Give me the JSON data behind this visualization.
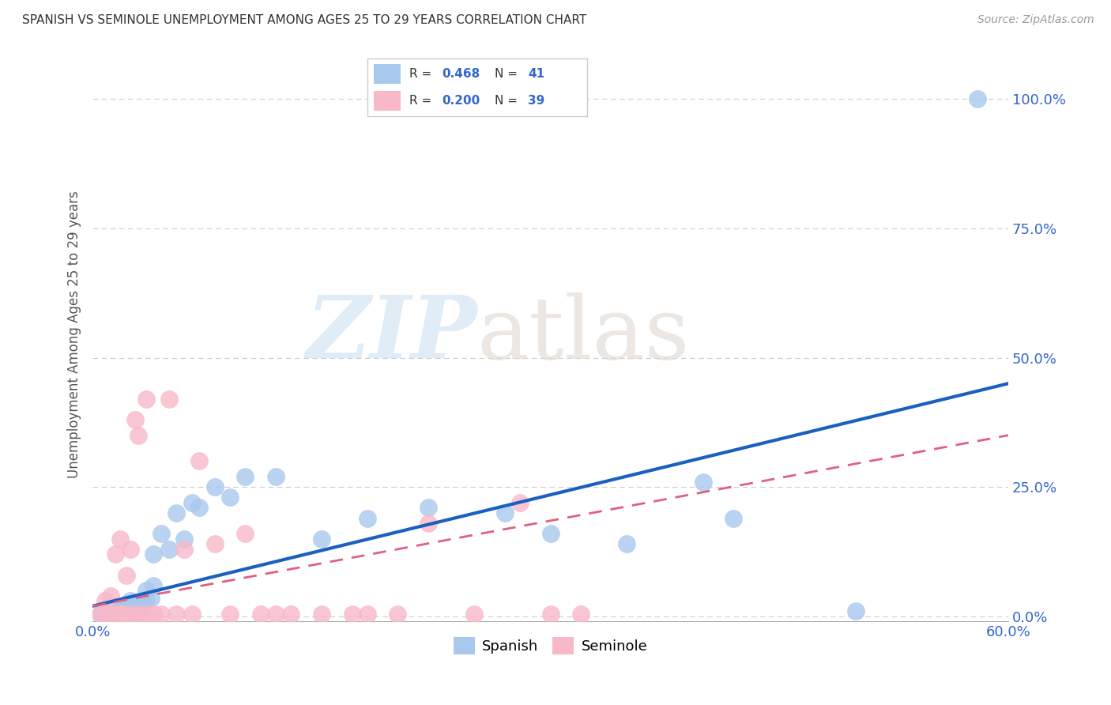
{
  "title": "SPANISH VS SEMINOLE UNEMPLOYMENT AMONG AGES 25 TO 29 YEARS CORRELATION CHART",
  "source": "Source: ZipAtlas.com",
  "ylabel": "Unemployment Among Ages 25 to 29 years",
  "xlim": [
    0.0,
    0.6
  ],
  "ylim": [
    -0.01,
    1.1
  ],
  "xticks": [
    0.0,
    0.15,
    0.3,
    0.45,
    0.6
  ],
  "yticks": [
    0.0,
    0.25,
    0.5,
    0.75,
    1.0
  ],
  "spanish_R": 0.468,
  "spanish_N": 41,
  "seminole_R": 0.2,
  "seminole_N": 39,
  "spanish_color": "#A8C8EE",
  "seminole_color": "#F8B8C8",
  "spanish_line_color": "#1A60C0",
  "seminole_line_color": "#E06080",
  "background_color": "#ffffff",
  "grid_color": "#cccccc",
  "title_color": "#333333",
  "axis_label_color": "#555555",
  "legend_R_N_color": "#3366CC",
  "spanish_x": [
    0.005,
    0.008,
    0.01,
    0.012,
    0.015,
    0.015,
    0.018,
    0.02,
    0.02,
    0.022,
    0.025,
    0.025,
    0.028,
    0.03,
    0.03,
    0.032,
    0.035,
    0.035,
    0.038,
    0.04,
    0.04,
    0.045,
    0.05,
    0.055,
    0.06,
    0.065,
    0.07,
    0.08,
    0.09,
    0.1,
    0.12,
    0.15,
    0.18,
    0.22,
    0.27,
    0.3,
    0.35,
    0.4,
    0.42,
    0.5,
    0.58
  ],
  "spanish_y": [
    0.005,
    0.01,
    0.008,
    0.015,
    0.005,
    0.02,
    0.01,
    0.005,
    0.018,
    0.025,
    0.005,
    0.03,
    0.02,
    0.005,
    0.015,
    0.025,
    0.03,
    0.05,
    0.035,
    0.12,
    0.06,
    0.16,
    0.13,
    0.2,
    0.15,
    0.22,
    0.21,
    0.25,
    0.23,
    0.27,
    0.27,
    0.15,
    0.19,
    0.21,
    0.2,
    0.16,
    0.14,
    0.26,
    0.19,
    0.01,
    1.0
  ],
  "seminole_x": [
    0.005,
    0.008,
    0.01,
    0.012,
    0.015,
    0.015,
    0.018,
    0.018,
    0.02,
    0.022,
    0.025,
    0.025,
    0.028,
    0.03,
    0.03,
    0.035,
    0.035,
    0.04,
    0.045,
    0.05,
    0.055,
    0.06,
    0.065,
    0.07,
    0.08,
    0.09,
    0.1,
    0.11,
    0.12,
    0.13,
    0.15,
    0.17,
    0.18,
    0.2,
    0.22,
    0.25,
    0.28,
    0.3,
    0.32
  ],
  "seminole_y": [
    0.005,
    0.03,
    0.005,
    0.04,
    0.005,
    0.12,
    0.005,
    0.15,
    0.005,
    0.08,
    0.005,
    0.13,
    0.38,
    0.005,
    0.35,
    0.005,
    0.42,
    0.005,
    0.005,
    0.42,
    0.005,
    0.13,
    0.005,
    0.3,
    0.14,
    0.005,
    0.16,
    0.005,
    0.005,
    0.005,
    0.005,
    0.005,
    0.005,
    0.005,
    0.18,
    0.005,
    0.22,
    0.005,
    0.005
  ]
}
